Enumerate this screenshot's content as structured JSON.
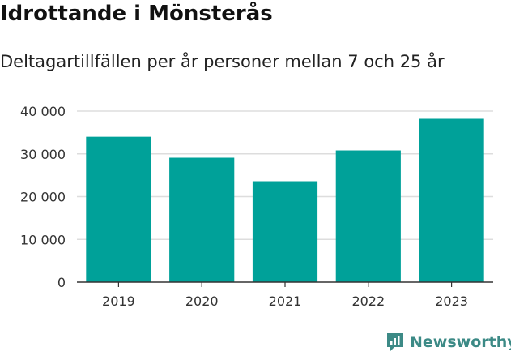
{
  "chart_data": {
    "type": "bar",
    "title": "Idrottande i Mönsterås",
    "subtitle": "Deltagartillfällen per år personer mellan 7 och 25 år",
    "categories": [
      "2019",
      "2020",
      "2021",
      "2022",
      "2023"
    ],
    "values": [
      34000,
      29100,
      23600,
      30800,
      38200
    ],
    "ylim": [
      0,
      40000
    ],
    "yticks": [
      0,
      10000,
      20000,
      30000,
      40000
    ],
    "ytick_labels": [
      "0",
      "10 000",
      "20 000",
      "30 000",
      "40 000"
    ],
    "grid": true,
    "bar_color": "#00a199"
  },
  "brand": {
    "name": "Newsworthy",
    "color": "#3c8a86"
  }
}
